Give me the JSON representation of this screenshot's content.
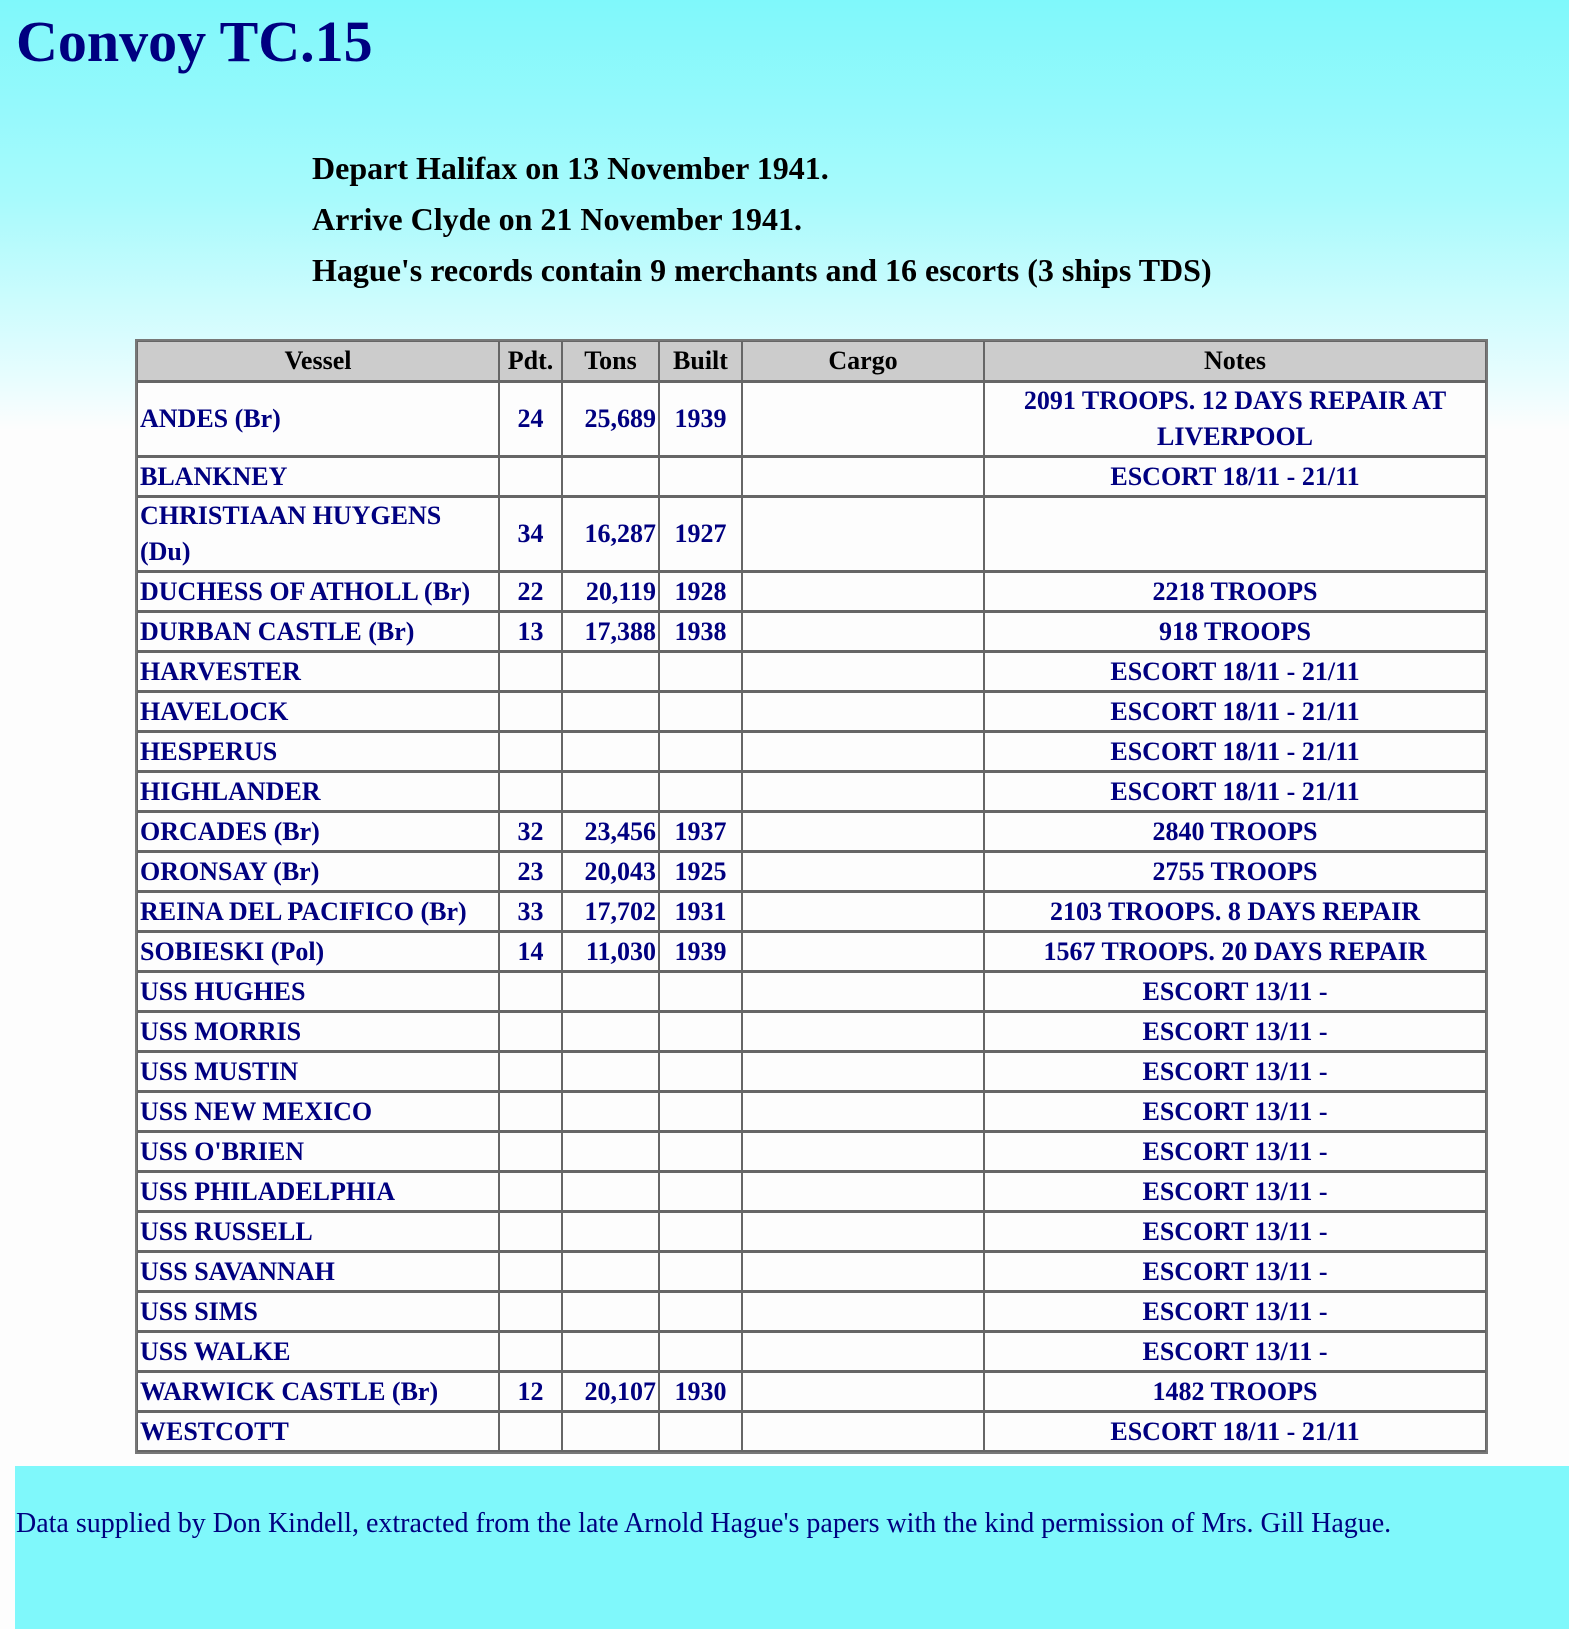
{
  "title": "Convoy TC.15",
  "info": [
    "Depart Halifax on 13 November 1941.",
    "Arrive Clyde on 21 November 1941.",
    "Hague's records contain 9 merchants and 16 escorts (3 ships TDS)"
  ],
  "columns": [
    "Vessel",
    "Pdt.",
    "Tons",
    "Built",
    "Cargo",
    "Notes"
  ],
  "rows": [
    [
      "ANDES (Br)",
      "24",
      "25,689",
      "1939",
      "",
      "2091 TROOPS. 12 DAYS REPAIR AT LIVERPOOL"
    ],
    [
      "BLANKNEY",
      "",
      "",
      "",
      "",
      "ESCORT 18/11 - 21/11"
    ],
    [
      "CHRISTIAAN HUYGENS (Du)",
      "34",
      "16,287",
      "1927",
      "",
      ""
    ],
    [
      "DUCHESS OF ATHOLL (Br)",
      "22",
      "20,119",
      "1928",
      "",
      "2218 TROOPS"
    ],
    [
      "DURBAN CASTLE (Br)",
      "13",
      "17,388",
      "1938",
      "",
      "918 TROOPS"
    ],
    [
      "HARVESTER",
      "",
      "",
      "",
      "",
      "ESCORT 18/11 - 21/11"
    ],
    [
      "HAVELOCK",
      "",
      "",
      "",
      "",
      "ESCORT 18/11 - 21/11"
    ],
    [
      "HESPERUS",
      "",
      "",
      "",
      "",
      "ESCORT 18/11 - 21/11"
    ],
    [
      "HIGHLANDER",
      "",
      "",
      "",
      "",
      "ESCORT 18/11 - 21/11"
    ],
    [
      "ORCADES (Br)",
      "32",
      "23,456",
      "1937",
      "",
      "2840 TROOPS"
    ],
    [
      "ORONSAY (Br)",
      "23",
      "20,043",
      "1925",
      "",
      "2755 TROOPS"
    ],
    [
      "REINA DEL PACIFICO (Br)",
      "33",
      "17,702",
      "1931",
      "",
      "2103 TROOPS. 8 DAYS REPAIR"
    ],
    [
      "SOBIESKI (Pol)",
      "14",
      "11,030",
      "1939",
      "",
      "1567 TROOPS. 20 DAYS REPAIR"
    ],
    [
      "USS HUGHES",
      "",
      "",
      "",
      "",
      "ESCORT 13/11 -"
    ],
    [
      "USS MORRIS",
      "",
      "",
      "",
      "",
      "ESCORT 13/11 -"
    ],
    [
      "USS MUSTIN",
      "",
      "",
      "",
      "",
      "ESCORT 13/11 -"
    ],
    [
      "USS NEW MEXICO",
      "",
      "",
      "",
      "",
      "ESCORT 13/11 -"
    ],
    [
      "USS O'BRIEN",
      "",
      "",
      "",
      "",
      "ESCORT 13/11 -"
    ],
    [
      "USS PHILADELPHIA",
      "",
      "",
      "",
      "",
      "ESCORT 13/11 -"
    ],
    [
      "USS RUSSELL",
      "",
      "",
      "",
      "",
      "ESCORT 13/11 -"
    ],
    [
      "USS SAVANNAH",
      "",
      "",
      "",
      "",
      "ESCORT 13/11 -"
    ],
    [
      "USS SIMS",
      "",
      "",
      "",
      "",
      "ESCORT 13/11 -"
    ],
    [
      "USS WALKE",
      "",
      "",
      "",
      "",
      "ESCORT 13/11 -"
    ],
    [
      "WARWICK CASTLE (Br)",
      "12",
      "20,107",
      "1930",
      "",
      "1482 TROOPS"
    ],
    [
      "WESTCOTT",
      "",
      "",
      "",
      "",
      "ESCORT 18/11 - 21/11"
    ]
  ],
  "footer": "Data supplied by Don Kindell, extracted from the late Arnold Hague's papers with the kind permission of Mrs. Gill Hague.",
  "colors": {
    "title": "#000080",
    "background_top": "#7ff8fb",
    "header_bg": "#cccccc"
  }
}
